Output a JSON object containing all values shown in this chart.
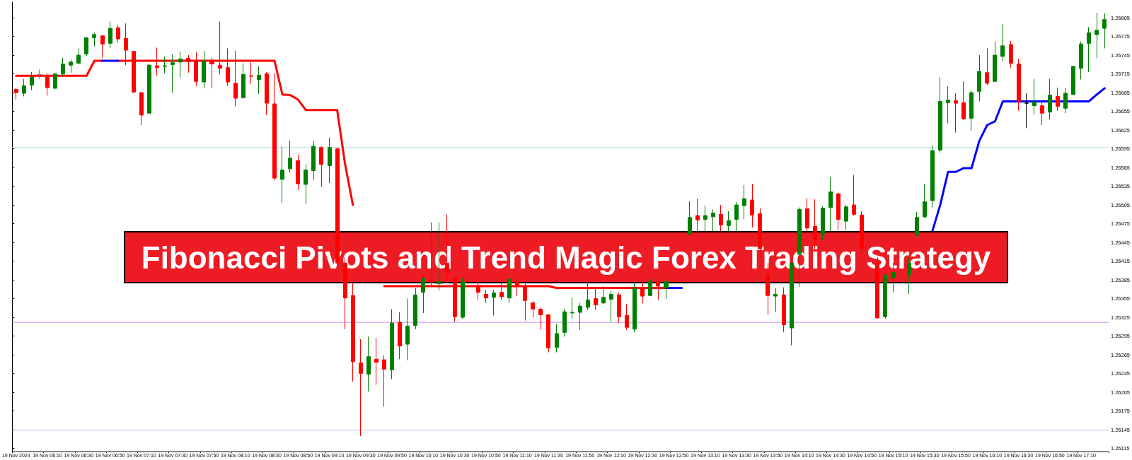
{
  "chart_data": {
    "type": "candlestick",
    "title": "Fibonacci Pivots and Trend Magic Forex Trading Strategy",
    "categories": [
      "19 Nov 2024",
      null,
      null,
      null,
      "19 Nov 06:10",
      null,
      null,
      null,
      "19 Nov 06:30",
      null,
      null,
      null,
      "19 Nov 06:50",
      null,
      null,
      null,
      "19 Nov 07:10",
      null,
      null,
      null,
      "19 Nov 07:30",
      null,
      null,
      null,
      "19 Nov 07:50",
      null,
      null,
      null,
      "19 Nov 08:10",
      null,
      null,
      null,
      "19 Nov 08:30",
      null,
      null,
      null,
      "19 Nov 08:50",
      null,
      null,
      null,
      "19 Nov 09:10",
      null,
      null,
      null,
      "19 Nov 09:30",
      null,
      null,
      null,
      "19 Nov 09:50",
      null,
      null,
      null,
      "19 Nov 10:10",
      null,
      null,
      null,
      "19 Nov 10:30",
      null,
      null,
      null,
      "19 Nov 10:50",
      null,
      null,
      null,
      "19 Nov 11:10",
      null,
      null,
      null,
      "19 Nov 11:30",
      null,
      null,
      null,
      "19 Nov 11:50",
      null,
      null,
      null,
      "19 Nov 12:10",
      null,
      null,
      null,
      "19 Nov 12:30",
      null,
      null,
      null,
      "19 Nov 12:50",
      null,
      null,
      null,
      "19 Nov 13:10",
      null,
      null,
      null,
      "19 Nov 13:30",
      null,
      null,
      null,
      "19 Nov 13:50",
      null,
      null,
      null,
      "19 Nov 14:10",
      null,
      null,
      null,
      "19 Nov 14:30",
      null,
      null,
      null,
      "19 Nov 14:50",
      null,
      null,
      null,
      "19 Nov 15:10",
      null,
      null,
      null,
      "19 Nov 15:30",
      null,
      null,
      null,
      "19 Nov 15:50",
      null,
      null,
      null,
      "19 Nov 16:10",
      null,
      null,
      null,
      "19 Nov 16:30",
      null,
      null,
      null,
      "19 Nov 16:50",
      null,
      null,
      null,
      "19 Nov 17:10",
      null,
      null,
      null
    ],
    "ohlc": [
      [
        1.2669,
        1.26693,
        1.26674,
        1.26685
      ],
      [
        1.26684,
        1.26707,
        1.26679,
        1.26696
      ],
      [
        1.26697,
        1.26718,
        1.26689,
        1.2671
      ],
      [
        1.26714,
        1.26722,
        1.26707,
        1.26714
      ],
      [
        1.2671,
        1.26716,
        1.2668,
        1.26693
      ],
      [
        1.26692,
        1.26716,
        1.2669,
        1.26715
      ],
      [
        1.26715,
        1.26741,
        1.26712,
        1.26731
      ],
      [
        1.26729,
        1.26738,
        1.26717,
        1.26734
      ],
      [
        1.26732,
        1.26756,
        1.26732,
        1.26745
      ],
      [
        1.26747,
        1.26774,
        1.26744,
        1.26773
      ],
      [
        1.26773,
        1.26781,
        1.26759,
        1.26778
      ],
      [
        1.26776,
        1.26777,
        1.26741,
        1.26763
      ],
      [
        1.26764,
        1.26799,
        1.26756,
        1.26788
      ],
      [
        1.26789,
        1.26794,
        1.26765,
        1.26771
      ],
      [
        1.26772,
        1.26796,
        1.26729,
        1.26753
      ],
      [
        1.26751,
        1.26752,
        1.26684,
        1.26686
      ],
      [
        1.26685,
        1.26686,
        1.26633,
        1.26649
      ],
      [
        1.26652,
        1.26731,
        1.26652,
        1.26729
      ],
      [
        1.26728,
        1.26757,
        1.26712,
        1.26725
      ],
      [
        1.26727,
        1.26743,
        1.26716,
        1.26728
      ],
      [
        1.2673,
        1.26746,
        1.26685,
        1.26733
      ],
      [
        1.26734,
        1.26751,
        1.26709,
        1.26739
      ],
      [
        1.2674,
        1.26745,
        1.26717,
        1.26735
      ],
      [
        1.26735,
        1.2675,
        1.26696,
        1.26703
      ],
      [
        1.26702,
        1.26752,
        1.26692,
        1.26735
      ],
      [
        1.26734,
        1.26741,
        1.26692,
        1.26731
      ],
      [
        1.26729,
        1.26799,
        1.26714,
        1.26724
      ],
      [
        1.26725,
        1.26756,
        1.26696,
        1.26702
      ],
      [
        1.267,
        1.26752,
        1.26663,
        1.26676
      ],
      [
        1.26677,
        1.26732,
        1.26675,
        1.26714
      ],
      [
        1.26712,
        1.26734,
        1.26699,
        1.26711
      ],
      [
        1.26706,
        1.26727,
        1.26683,
        1.26713
      ],
      [
        1.26715,
        1.26718,
        1.26649,
        1.26668
      ],
      [
        1.26667,
        1.26716,
        1.26544,
        1.26548
      ],
      [
        1.26546,
        1.26599,
        1.26508,
        1.26561
      ],
      [
        1.26563,
        1.26608,
        1.26557,
        1.2658
      ],
      [
        1.26576,
        1.26586,
        1.26529,
        1.26539
      ],
      [
        1.26538,
        1.2657,
        1.26506,
        1.26561
      ],
      [
        1.2656,
        1.26607,
        1.26545,
        1.26599
      ],
      [
        1.26597,
        1.26599,
        1.26534,
        1.2657
      ],
      [
        1.26568,
        1.26613,
        1.2654,
        1.26597
      ],
      [
        1.26595,
        1.26597,
        1.26407,
        1.26412
      ],
      [
        1.26412,
        1.26421,
        1.26306,
        1.26356
      ],
      [
        1.2636,
        1.26381,
        1.26222,
        1.26254
      ],
      [
        1.26252,
        1.2629,
        1.26135,
        1.26235
      ],
      [
        1.26234,
        1.26294,
        1.26206,
        1.26262
      ],
      [
        1.26258,
        1.26292,
        1.26217,
        1.26253
      ],
      [
        1.26257,
        1.26264,
        1.26182,
        1.26242
      ],
      [
        1.26241,
        1.26338,
        1.26226,
        1.26316
      ],
      [
        1.26317,
        1.26333,
        1.26258,
        1.26279
      ],
      [
        1.26282,
        1.26355,
        1.26256,
        1.26311
      ],
      [
        1.26312,
        1.26372,
        1.26306,
        1.26361
      ],
      [
        1.26365,
        1.26393,
        1.26332,
        1.26388
      ],
      [
        1.26384,
        1.26477,
        1.26376,
        1.26381
      ],
      [
        1.26379,
        1.26477,
        1.26368,
        1.26382
      ],
      [
        1.26412,
        1.2649,
        1.26383,
        1.26397
      ],
      [
        1.26388,
        1.2639,
        1.26318,
        1.26326
      ],
      [
        1.26325,
        1.26388,
        1.26323,
        1.26382
      ],
      null,
      [
        1.26376,
        1.26383,
        1.26353,
        1.26365
      ],
      [
        1.26362,
        1.26369,
        1.26348,
        1.26356
      ],
      [
        1.26357,
        1.26369,
        1.26328,
        1.26364
      ],
      [
        1.26365,
        1.26381,
        1.26353,
        1.26358
      ],
      [
        1.26356,
        1.26388,
        1.26348,
        1.26386
      ],
      [
        1.26382,
        1.26388,
        1.26359,
        1.26374
      ],
      [
        1.26374,
        1.26379,
        1.2632,
        1.26352
      ],
      [
        1.26348,
        1.26351,
        1.26325,
        1.26338
      ],
      [
        1.26338,
        1.26341,
        1.26305,
        1.26329
      ],
      [
        1.26329,
        1.2633,
        1.26269,
        1.26276
      ],
      [
        1.26277,
        1.26314,
        1.26269,
        1.26299
      ],
      [
        1.26301,
        1.26339,
        1.26294,
        1.26334
      ],
      [
        1.26332,
        1.26357,
        1.26322,
        1.26333
      ],
      [
        1.26333,
        1.26348,
        1.26305,
        1.26343
      ],
      [
        1.26341,
        1.26382,
        1.26337,
        1.26353
      ],
      [
        1.26355,
        1.26372,
        1.26337,
        1.26345
      ],
      [
        1.26348,
        1.26375,
        1.26346,
        1.26357
      ],
      [
        1.26354,
        1.26367,
        1.26318,
        1.26362
      ],
      [
        1.26361,
        1.26365,
        1.26316,
        1.26326
      ],
      [
        1.26328,
        1.26346,
        1.26305,
        1.26309
      ],
      [
        1.26306,
        1.26381,
        1.26301,
        1.26372
      ],
      [
        1.26372,
        1.26382,
        1.26347,
        1.26359
      ],
      [
        1.2636,
        1.26386,
        1.26359,
        1.26382
      ],
      [
        1.26382,
        1.26386,
        1.26353,
        1.26375
      ],
      [
        1.26372,
        1.26386,
        1.26355,
        1.26382
      ],
      null,
      null,
      [
        1.26458,
        1.26511,
        1.26454,
        1.26485
      ],
      [
        1.26488,
        1.26515,
        1.26463,
        1.26481
      ],
      [
        1.26482,
        1.26504,
        1.26463,
        1.26488
      ],
      [
        1.26486,
        1.26498,
        1.26463,
        1.26492
      ],
      [
        1.2649,
        1.26505,
        1.26463,
        1.26473
      ],
      [
        1.26472,
        1.26495,
        1.26463,
        1.2648
      ],
      [
        1.26482,
        1.2651,
        1.26463,
        1.26505
      ],
      [
        1.26504,
        1.26537,
        1.26482,
        1.26515
      ],
      [
        1.26513,
        1.26539,
        1.26469,
        1.26489
      ],
      [
        1.26491,
        1.265,
        1.26421,
        1.26435
      ],
      [
        1.26393,
        1.26412,
        1.26329,
        1.2636
      ],
      [
        1.26359,
        1.26372,
        1.26334,
        1.26362
      ],
      [
        1.26361,
        1.26373,
        1.26301,
        1.26313
      ],
      [
        1.26308,
        1.26421,
        1.2628,
        1.26412
      ],
      [
        1.26426,
        1.26501,
        1.26374,
        1.26498
      ],
      [
        1.26499,
        1.26516,
        1.26463,
        1.26468
      ],
      [
        1.26471,
        1.26514,
        1.26435,
        1.26449
      ],
      [
        1.26458,
        1.26503,
        1.26449,
        1.265
      ],
      [
        1.26501,
        1.2655,
        1.26463,
        1.26526
      ],
      [
        1.26523,
        1.26525,
        1.26465,
        1.26482
      ],
      [
        1.26479,
        1.26505,
        1.26465,
        1.26502
      ],
      [
        1.26505,
        1.26553,
        1.26488,
        1.2649
      ],
      [
        1.26489,
        1.26495,
        1.26426,
        1.26435
      ],
      null,
      [
        1.26412,
        1.26421,
        1.26323,
        1.26324
      ],
      [
        1.26326,
        1.26402,
        1.26323,
        1.26393
      ],
      [
        1.26388,
        1.26412,
        1.26365,
        1.26397
      ],
      null,
      [
        1.26393,
        1.26421,
        1.26362,
        1.26412
      ],
      [
        1.26458,
        1.26494,
        1.26454,
        1.26485
      ],
      [
        1.26486,
        1.26539,
        1.26484,
        1.2651
      ],
      [
        1.26512,
        1.26601,
        1.26501,
        1.26592
      ],
      [
        1.26593,
        1.2671,
        1.26589,
        1.26671
      ],
      [
        1.26669,
        1.26695,
        1.26636,
        1.26673
      ],
      [
        1.26672,
        1.26684,
        1.26621,
        1.26668
      ],
      [
        1.26669,
        1.26703,
        1.26641,
        1.26643
      ],
      [
        1.26644,
        1.26689,
        1.26624,
        1.26685
      ],
      [
        1.26687,
        1.26745,
        1.26671,
        1.26719
      ],
      [
        1.26717,
        1.26756,
        1.26697,
        1.267
      ],
      [
        1.26703,
        1.26767,
        1.26702,
        1.26745
      ],
      [
        1.26743,
        1.26795,
        1.26736,
        1.2676
      ],
      [
        1.26762,
        1.26768,
        1.26725,
        1.26732
      ],
      [
        1.26731,
        1.26739,
        1.26656,
        1.26671
      ],
      [
        1.26668,
        1.26684,
        1.26628,
        1.26668
      ],
      [
        1.26664,
        1.26707,
        1.2665,
        1.2667
      ],
      [
        1.26664,
        1.26671,
        1.26633,
        1.26652
      ],
      [
        1.26654,
        1.26707,
        1.26642,
        1.26681
      ],
      [
        1.26679,
        1.26693,
        1.26656,
        1.26663
      ],
      [
        1.2666,
        1.26693,
        1.26652,
        1.26684
      ],
      [
        1.26682,
        1.26728,
        1.26681,
        1.26727
      ],
      [
        1.26724,
        1.26767,
        1.26706,
        1.26763
      ],
      [
        1.26764,
        1.2679,
        1.26718,
        1.26781
      ],
      [
        1.26778,
        1.26813,
        1.2674,
        1.26785
      ],
      [
        1.26788,
        1.26812,
        1.26756,
        1.26802
      ]
    ],
    "colors": [
      "#ff0000",
      "#008000",
      "#008000",
      "#808080",
      "#ff0000",
      "#008000",
      "#008000",
      "#008000",
      "#008000",
      "#008000",
      "#008000",
      "#ff0000",
      "#008000",
      "#ff0000",
      "#ff0000",
      "#ff0000",
      "#ff0000",
      "#008000",
      "#ff0000",
      "#008000",
      "#008000",
      "#008000",
      "#ff0000",
      "#ff0000",
      "#008000",
      "#ff0000",
      "#ff0000",
      "#ff0000",
      "#ff0000",
      "#008000",
      "#ff0000",
      "#008000",
      "#ff0000",
      "#ff0000",
      "#008000",
      "#008000",
      "#ff0000",
      "#008000",
      "#008000",
      "#ff0000",
      "#008000",
      "#ff0000",
      "#ff0000",
      "#ff0000",
      "#ff0000",
      "#008000",
      "#ff0000",
      "#ff0000",
      "#008000",
      "#ff0000",
      "#008000",
      "#008000",
      "#008000",
      "#ff0000",
      "#008000",
      "#ff0000",
      "#ff0000",
      "#008000",
      null,
      "#ff0000",
      "#ff0000",
      "#008000",
      "#ff0000",
      "#008000",
      "#ff0000",
      "#ff0000",
      "#ff0000",
      "#ff0000",
      "#ff0000",
      "#008000",
      "#008000",
      "#008000",
      "#008000",
      "#008000",
      "#ff0000",
      "#008000",
      "#008000",
      "#ff0000",
      "#ff0000",
      "#008000",
      "#ff0000",
      "#008000",
      "#ff0000",
      "#008000",
      null,
      null,
      "#008000",
      "#ff0000",
      "#008000",
      "#008000",
      "#ff0000",
      "#008000",
      "#008000",
      "#008000",
      "#ff0000",
      "#ff0000",
      "#ff0000",
      "#008000",
      "#ff0000",
      "#008000",
      "#008000",
      "#ff0000",
      "#ff0000",
      "#008000",
      "#008000",
      "#ff0000",
      "#008000",
      "#ff0000",
      "#ff0000",
      null,
      "#ff0000",
      "#008000",
      "#008000",
      null,
      "#008000",
      "#008000",
      "#008000",
      "#008000",
      "#008000",
      "#008000",
      "#ff0000",
      "#ff0000",
      "#008000",
      "#008000",
      "#ff0000",
      "#008000",
      "#008000",
      "#ff0000",
      "#ff0000",
      "#000000",
      "#008000",
      "#ff0000",
      "#008000",
      "#ff0000",
      "#008000",
      "#008000",
      "#008000",
      "#008000",
      "#008000",
      "#008000"
    ],
    "series": [
      {
        "type": "line",
        "color": "#ff0000",
        "values": [
          1.26712,
          1.26712,
          1.26712,
          1.26712,
          1.26712,
          1.26712,
          1.26712,
          1.26712,
          1.26712,
          1.26712,
          1.26736,
          1.26736,
          null,
          1.26736,
          1.26736,
          1.26736,
          1.26736,
          1.26736,
          1.26736,
          1.26736,
          1.26736,
          1.26736,
          1.26736,
          1.26736,
          1.26736,
          1.26736,
          1.26736,
          1.26736,
          1.26736,
          1.26736,
          1.26736,
          1.26736,
          1.26736,
          1.26736,
          1.26682,
          1.26681,
          1.26674,
          1.26657,
          1.26657,
          1.26657,
          1.26657,
          1.26657,
          1.26571,
          1.26505,
          null,
          null,
          null,
          1.26375,
          1.26375,
          1.26375,
          1.26375,
          1.26375,
          1.26375,
          1.26375,
          1.26375,
          1.26375,
          1.26375,
          1.26375,
          1.26375,
          1.26375,
          1.26375,
          1.26375,
          1.26375,
          1.26375,
          1.26375,
          1.26375,
          1.26375,
          1.26375,
          1.26375,
          1.26372,
          1.26372,
          1.26372,
          1.26372,
          1.26372,
          1.26372,
          1.26372,
          1.26372,
          1.26372,
          1.26372,
          1.26372,
          1.26372,
          1.26372,
          1.26372,
          1.26372,
          null,
          null,
          null,
          null,
          null,
          null,
          null,
          null,
          null,
          null,
          null,
          null,
          null,
          null,
          null,
          null,
          null,
          null,
          null,
          null,
          null,
          null,
          null,
          null,
          null,
          null,
          null,
          null,
          null,
          null,
          null,
          null,
          null,
          null,
          null,
          null,
          null,
          null,
          null,
          null,
          null,
          null,
          null,
          null,
          null,
          null,
          null,
          null,
          null,
          null,
          null,
          null,
          null,
          null,
          null,
          null
        ]
      },
      {
        "type": "line",
        "color": "#0000ff",
        "values": [
          null,
          null,
          null,
          null,
          null,
          null,
          null,
          null,
          null,
          null,
          null,
          1.26736,
          1.26736,
          1.26736,
          null,
          null,
          null,
          null,
          null,
          null,
          null,
          null,
          null,
          null,
          null,
          null,
          null,
          null,
          null,
          null,
          null,
          null,
          null,
          null,
          null,
          null,
          null,
          null,
          null,
          null,
          null,
          null,
          null,
          null,
          null,
          null,
          null,
          null,
          null,
          null,
          null,
          null,
          null,
          null,
          null,
          null,
          null,
          null,
          null,
          null,
          null,
          null,
          null,
          null,
          null,
          null,
          null,
          null,
          null,
          null,
          null,
          null,
          null,
          null,
          null,
          null,
          null,
          null,
          null,
          null,
          null,
          null,
          null,
          1.26372,
          1.26372,
          1.26372,
          null,
          null,
          null,
          null,
          null,
          null,
          null,
          null,
          null,
          null,
          null,
          null,
          null,
          null,
          null,
          null,
          null,
          null,
          null,
          null,
          null,
          null,
          null,
          null,
          null,
          null,
          null,
          null,
          null,
          null,
          null,
          1.26463,
          1.26505,
          1.26558,
          1.26558,
          1.26564,
          1.26564,
          1.26608,
          1.26633,
          1.26639,
          1.26671,
          1.26671,
          1.26671,
          1.26671,
          1.26671,
          1.26671,
          1.26671,
          1.26671,
          1.26671,
          1.26671,
          1.26671,
          1.26671,
          1.26682,
          1.26692
        ]
      }
    ],
    "marker": "none",
    "ylim": [
      1.2611,
      1.2683
    ],
    "yticks": [
      1.26115,
      1.26145,
      1.26175,
      1.26205,
      1.26235,
      1.26265,
      1.26295,
      1.26325,
      1.26355,
      1.26385,
      1.26415,
      1.26445,
      1.26475,
      1.26505,
      1.26535,
      1.26565,
      1.26595,
      1.26625,
      1.26655,
      1.26685,
      1.26715,
      1.26745,
      1.26775,
      1.26805
    ],
    "ref_lines": [
      {
        "axis": "y",
        "value": 1.26597,
        "color": "#b8dde6"
      },
      {
        "axis": "y",
        "value": 1.26317,
        "color": "#c890e8"
      },
      {
        "axis": "y",
        "value": 1.26144,
        "color": "#c8c4ee"
      }
    ]
  }
}
